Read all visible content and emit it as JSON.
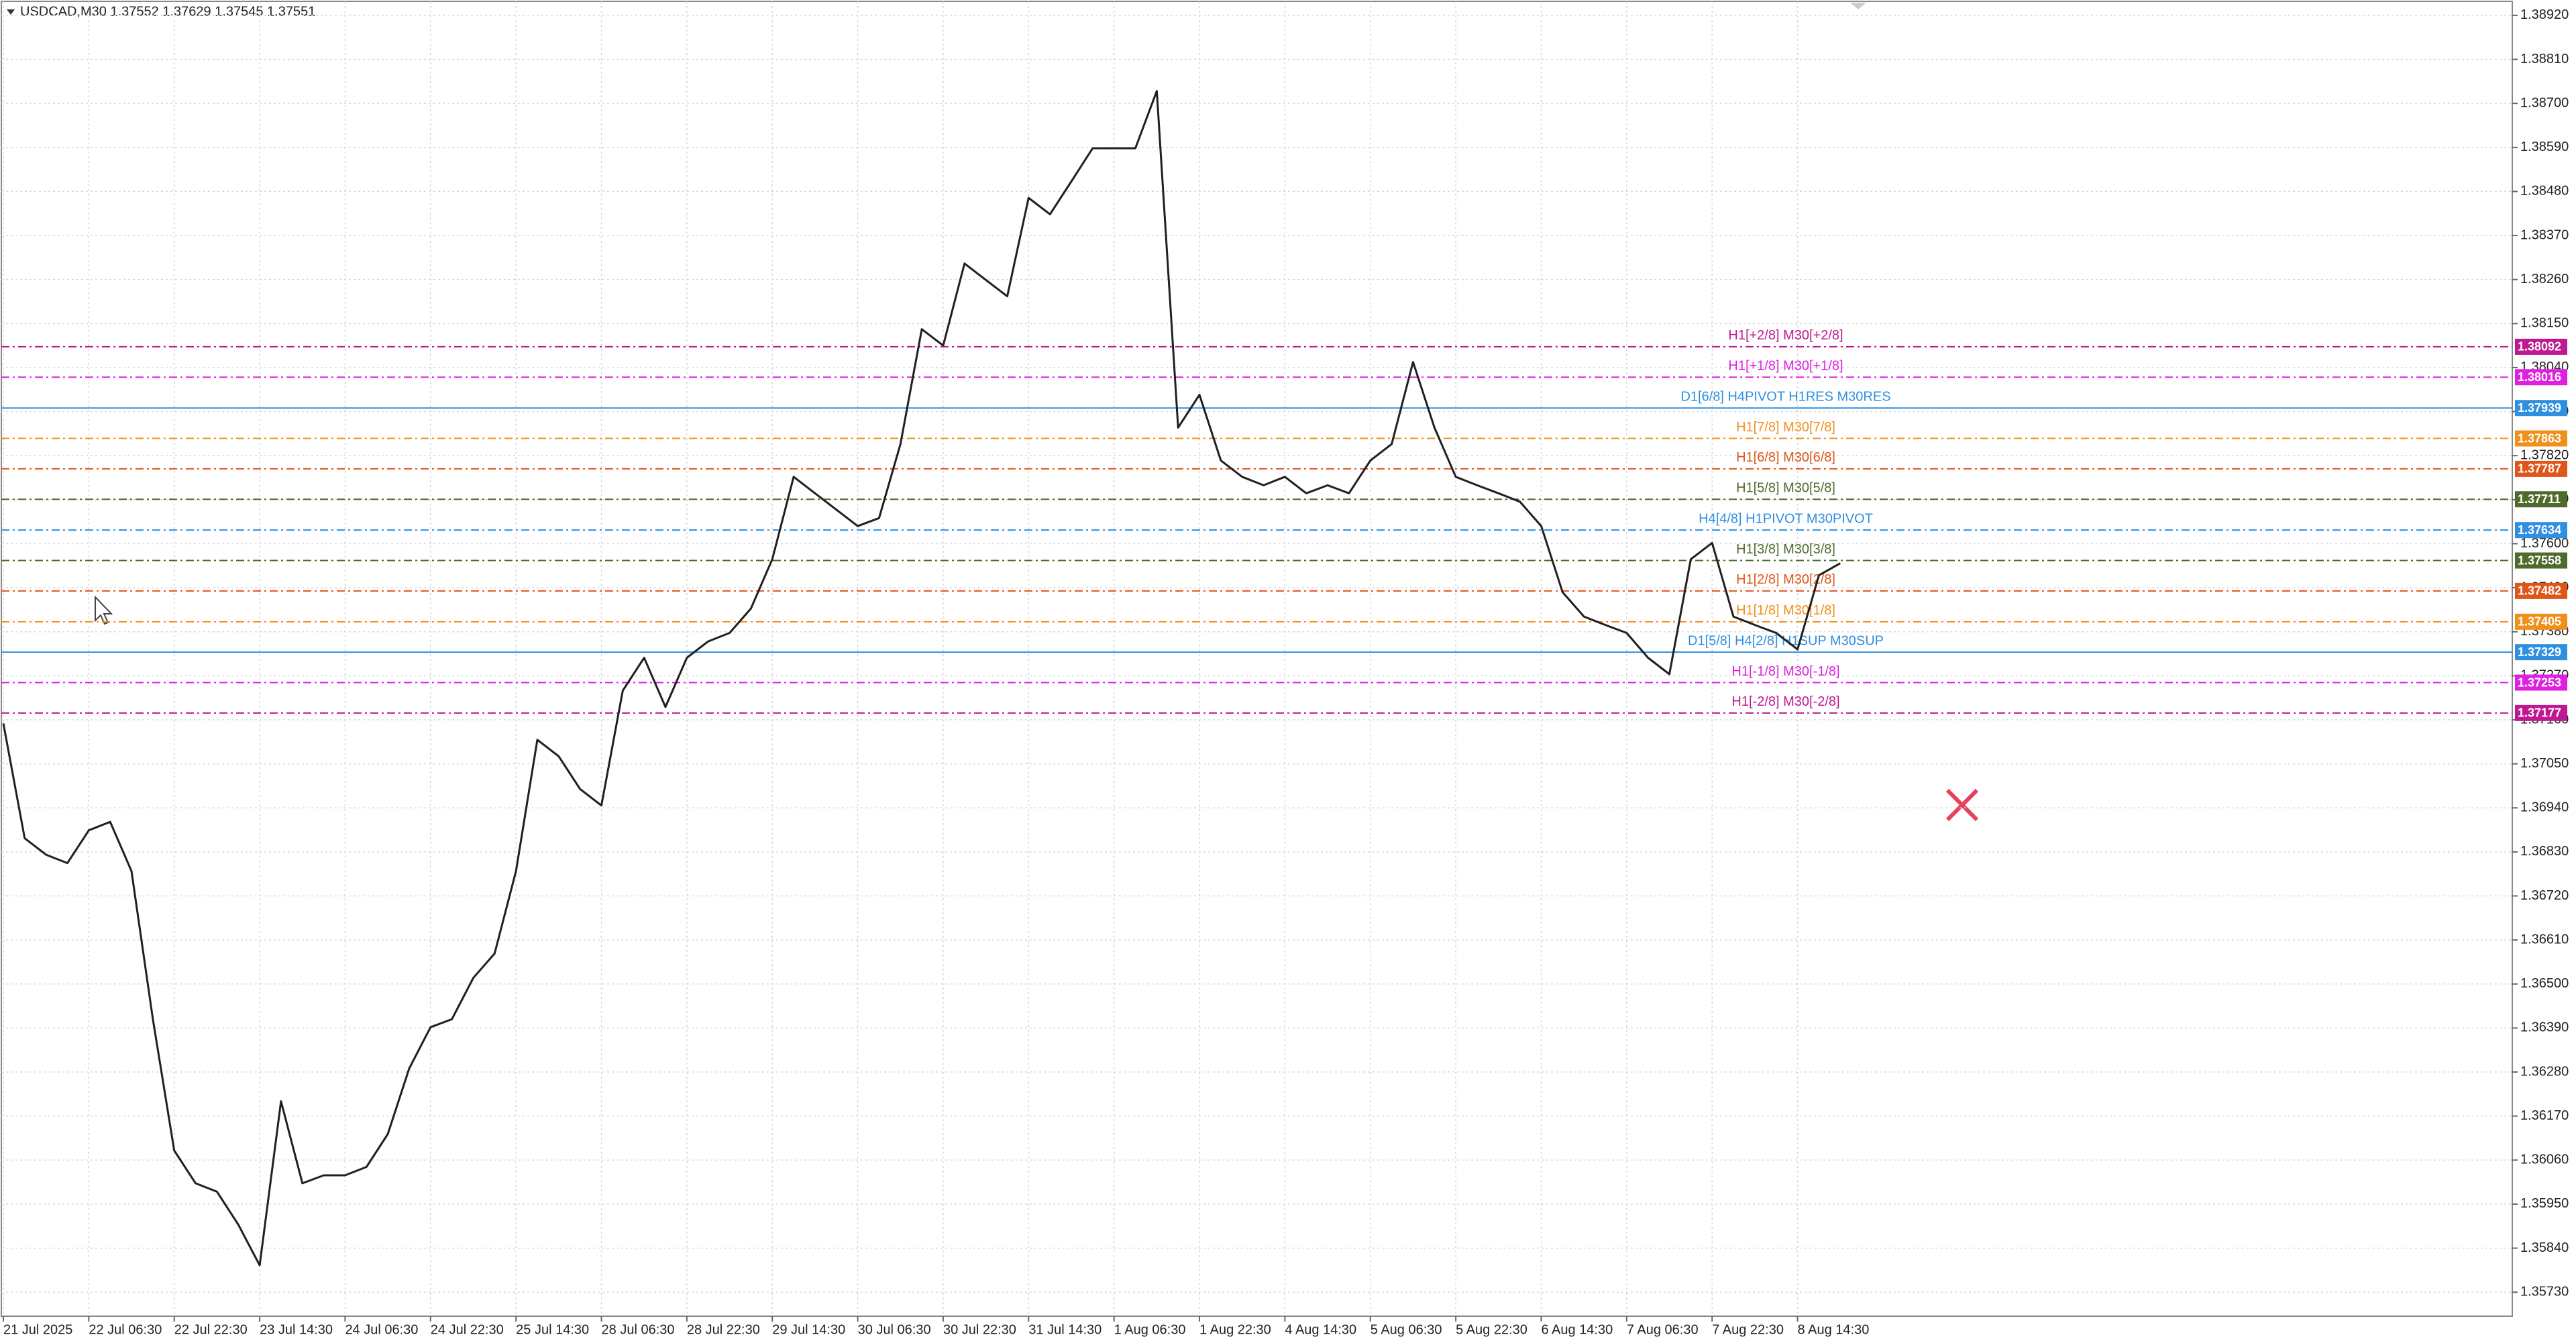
{
  "chart_data": {
    "type": "line",
    "title": "USDCAD,M30  1.37552 1.37629 1.37545 1.37551",
    "color": "#202020",
    "grid": true,
    "ylim": [
      1.3895,
      1.3567
    ],
    "yticks": [
      {
        "value": 1.3892,
        "label": "1.38920"
      },
      {
        "value": 1.3881,
        "label": "1.38810"
      },
      {
        "value": 1.387,
        "label": "1.38700"
      },
      {
        "value": 1.3859,
        "label": "1.38590"
      },
      {
        "value": 1.3848,
        "label": "1.38480"
      },
      {
        "value": 1.3837,
        "label": "1.38370"
      },
      {
        "value": 1.3826,
        "label": "1.38260"
      },
      {
        "value": 1.3815,
        "label": "1.38150"
      },
      {
        "value": 1.3804,
        "label": "1.38040"
      },
      {
        "value": 1.3793,
        "label": "1.37930"
      },
      {
        "value": 1.3782,
        "label": "1.37820"
      },
      {
        "value": 1.3771,
        "label": "1.37710"
      },
      {
        "value": 1.376,
        "label": "1.37600"
      },
      {
        "value": 1.3749,
        "label": "1.37490"
      },
      {
        "value": 1.3738,
        "label": "1.37380"
      },
      {
        "value": 1.3727,
        "label": "1.37270"
      },
      {
        "value": 1.3716,
        "label": "1.37160"
      },
      {
        "value": 1.3705,
        "label": "1.37050"
      },
      {
        "value": 1.3694,
        "label": "1.36940"
      },
      {
        "value": 1.3683,
        "label": "1.36830"
      },
      {
        "value": 1.3672,
        "label": "1.36720"
      },
      {
        "value": 1.3661,
        "label": "1.36610"
      },
      {
        "value": 1.365,
        "label": "1.36500"
      },
      {
        "value": 1.3639,
        "label": "1.36390"
      },
      {
        "value": 1.3628,
        "label": "1.36280"
      },
      {
        "value": 1.3617,
        "label": "1.36170"
      },
      {
        "value": 1.3606,
        "label": "1.36060"
      },
      {
        "value": 1.3595,
        "label": "1.35950"
      },
      {
        "value": 1.3584,
        "label": "1.35840"
      },
      {
        "value": 1.3573,
        "label": "1.35730"
      }
    ],
    "categories": [
      "21 Jul 2025",
      null,
      null,
      null,
      "22 Jul 06:30",
      null,
      null,
      null,
      "22 Jul 22:30",
      null,
      null,
      null,
      "23 Jul 14:30",
      null,
      null,
      null,
      "24 Jul 06:30",
      null,
      null,
      null,
      "24 Jul 22:30",
      null,
      null,
      null,
      "25 Jul 14:30",
      null,
      null,
      null,
      "28 Jul 06:30",
      null,
      null,
      null,
      "28 Jul 22:30",
      null,
      null,
      null,
      "29 Jul 14:30",
      null,
      null,
      null,
      "30 Jul 06:30",
      null,
      null,
      null,
      "30 Jul 22:30",
      null,
      null,
      null,
      "31 Jul 14:30",
      null,
      null,
      null,
      "1 Aug 06:30",
      null,
      null,
      null,
      "1 Aug 22:30",
      null,
      null,
      null,
      "4 Aug 14:30",
      null,
      null,
      null,
      "5 Aug 06:30",
      null,
      null,
      null,
      "5 Aug 22:30",
      null,
      null,
      null,
      "6 Aug 14:30",
      null,
      null,
      null,
      "7 Aug 06:30",
      null,
      null,
      null,
      "7 Aug 22:30",
      null,
      null,
      null,
      "8 Aug 14:30",
      null,
      null
    ],
    "values": [
      1.37151,
      1.36864,
      1.36823,
      1.36802,
      1.36884,
      1.36905,
      1.36782,
      1.36412,
      1.36084,
      1.36002,
      1.35981,
      1.35899,
      1.35797,
      1.36207,
      1.36002,
      1.36022,
      1.36022,
      1.36043,
      1.36125,
      1.36289,
      1.36392,
      1.36412,
      1.36515,
      1.36576,
      1.36782,
      1.3711,
      1.37069,
      1.36987,
      1.36946,
      1.37233,
      1.37315,
      1.37192,
      1.37315,
      1.37356,
      1.37377,
      1.37438,
      1.37561,
      1.37767,
      1.37726,
      1.37685,
      1.37644,
      1.37664,
      1.37849,
      1.38136,
      1.38095,
      1.383,
      1.38259,
      1.38218,
      1.38464,
      1.38423,
      1.38505,
      1.38588,
      1.38588,
      1.38588,
      1.38731,
      1.3789,
      1.37972,
      1.37808,
      1.37767,
      1.37746,
      1.37767,
      1.37726,
      1.37746,
      1.37726,
      1.37808,
      1.37849,
      1.38054,
      1.3789,
      1.37767,
      1.37746,
      1.37726,
      1.37705,
      1.37644,
      1.37479,
      1.37418,
      1.37397,
      1.37377,
      1.37315,
      1.37274,
      1.37561,
      1.37602,
      1.37418,
      1.37397,
      1.37377,
      1.37336,
      1.37521,
      1.37551
    ],
    "levels": [
      {
        "value": 1.38092,
        "label": "H1[+2/8] M30[+2/8]",
        "color": "#c01890",
        "style": "dashdot"
      },
      {
        "value": 1.38016,
        "label": "H1[+1/8] M30[+1/8]",
        "color": "#e020e0",
        "style": "dashdot"
      },
      {
        "value": 1.37939,
        "label": "D1[6/8] H4PIVOT H1RES M30RES",
        "color": "#2f8fe0",
        "style": "solid"
      },
      {
        "value": 1.37863,
        "label": "H1[7/8] M30[7/8]",
        "color": "#f0901c",
        "style": "dashdot"
      },
      {
        "value": 1.37787,
        "label": "H1[6/8] M30[6/8]",
        "color": "#e0561a",
        "style": "dashdot"
      },
      {
        "value": 1.37711,
        "label": "H1[5/8] M30[5/8]",
        "color": "#4f6b2c",
        "style": "dashdot"
      },
      {
        "value": 1.37634,
        "label": "H4[4/8] H1PIVOT M30PIVOT",
        "color": "#2f8fe0",
        "style": "dashdot"
      },
      {
        "value": 1.37558,
        "label": "H1[3/8] M30[3/8]",
        "color": "#4f6b2c",
        "style": "dashdot"
      },
      {
        "value": 1.37482,
        "label": "H1[2/8] M30[2/8]",
        "color": "#e0561a",
        "style": "dashdot"
      },
      {
        "value": 1.37405,
        "label": "H1[1/8] M30[1/8]",
        "color": "#f0901c",
        "style": "dashdot"
      },
      {
        "value": 1.37329,
        "label": "D1[5/8] H4[2/8] H1SUP M30SUP",
        "color": "#2f8fe0",
        "style": "solid"
      },
      {
        "value": 1.37253,
        "label": "H1[-1/8] M30[-1/8]",
        "color": "#e020e0",
        "style": "dashdot"
      },
      {
        "value": 1.37177,
        "label": "H1[-2/8] M30[-2/8]",
        "color": "#c01890",
        "style": "dashdot"
      }
    ]
  }
}
